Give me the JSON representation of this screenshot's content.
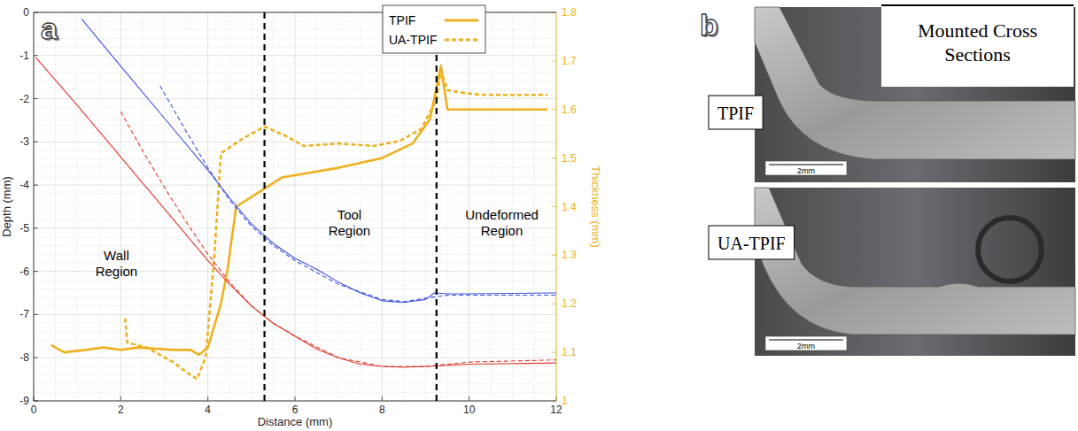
{
  "chart_data": {
    "type": "line",
    "panel_label": "a",
    "x_label": "Distance (mm)",
    "y_label": "Depth (mm)",
    "y2_label": "Thickness (mm)",
    "xlim": [
      0,
      12
    ],
    "xticks": [
      0,
      2,
      4,
      6,
      8,
      10,
      12
    ],
    "ylim": [
      -9,
      0
    ],
    "yticks": [
      -9,
      -8,
      -7,
      -6,
      -5,
      -4,
      -3,
      -2,
      -1,
      0
    ],
    "y2lim": [
      1,
      1.8
    ],
    "y2ticks": [
      1,
      1.1,
      1.2,
      1.3,
      1.4,
      1.5,
      1.6,
      1.7,
      1.8
    ],
    "grid": true,
    "legend": "top",
    "vlines": [
      5.3,
      9.25
    ],
    "regions": [
      "Wall Region",
      "Tool Region",
      "Undeformed Region"
    ],
    "series": [
      {
        "name": "TPIF",
        "color": "#edb120",
        "axis": "y2",
        "line_style": "solid",
        "x": [
          0.4,
          0.7,
          1.2,
          1.6,
          2.0,
          2.4,
          3.2,
          3.6,
          3.8,
          4.0,
          4.3,
          4.45,
          4.65,
          5.0,
          5.7,
          7.0,
          8.0,
          8.7,
          9.1,
          9.35,
          9.5,
          10.0,
          11.8
        ],
        "values": [
          1.115,
          1.1,
          1.105,
          1.11,
          1.105,
          1.11,
          1.105,
          1.105,
          1.095,
          1.11,
          1.2,
          1.27,
          1.4,
          1.42,
          1.46,
          1.48,
          1.5,
          1.53,
          1.58,
          1.69,
          1.6,
          1.6,
          1.6
        ]
      },
      {
        "name": "UA-TPIF",
        "color": "#edb120",
        "axis": "y2",
        "line_style": "dashed",
        "x": [
          2.1,
          2.15,
          2.6,
          3.2,
          3.5,
          3.75,
          3.95,
          4.15,
          4.3,
          4.8,
          5.3,
          5.8,
          6.2,
          7.0,
          7.8,
          8.4,
          8.9,
          9.25,
          9.35,
          9.5,
          9.8,
          10.3,
          11.8
        ],
        "values": [
          1.17,
          1.12,
          1.11,
          1.08,
          1.06,
          1.045,
          1.09,
          1.3,
          1.51,
          1.54,
          1.565,
          1.545,
          1.525,
          1.53,
          1.525,
          1.535,
          1.56,
          1.62,
          1.68,
          1.64,
          1.635,
          1.63,
          1.63
        ]
      },
      {
        "color": "#3c4fe0",
        "line_style": "solid",
        "x": [
          1.1,
          2,
          3,
          4,
          4.5,
          5,
          5.5,
          6,
          6.5,
          7,
          7.5,
          8,
          8.5,
          9,
          9.2,
          9.5,
          10,
          12
        ],
        "values": [
          -0.15,
          -1.25,
          -2.45,
          -3.65,
          -4.3,
          -4.9,
          -5.35,
          -5.7,
          -5.95,
          -6.25,
          -6.5,
          -6.68,
          -6.72,
          -6.65,
          -6.5,
          -6.52,
          -6.52,
          -6.5
        ]
      },
      {
        "color": "#3c4fe0",
        "line_style": "dashed",
        "x": [
          2.9,
          3.5,
          4,
          4.5,
          5,
          5.5,
          6,
          7,
          8,
          8.5,
          9,
          9.5,
          10,
          12
        ],
        "values": [
          -1.7,
          -2.75,
          -3.6,
          -4.35,
          -4.95,
          -5.4,
          -5.75,
          -6.3,
          -6.65,
          -6.7,
          -6.62,
          -6.55,
          -6.55,
          -6.55
        ]
      },
      {
        "color": "#e0352b",
        "line_style": "solid",
        "x": [
          0.05,
          1,
          2,
          3,
          4,
          4.5,
          5,
          5.5,
          6,
          6.5,
          7,
          7.5,
          8,
          8.5,
          9,
          10,
          12
        ],
        "values": [
          -1.05,
          -2.15,
          -3.35,
          -4.55,
          -5.75,
          -6.3,
          -6.8,
          -7.2,
          -7.5,
          -7.8,
          -8.0,
          -8.15,
          -8.2,
          -8.22,
          -8.2,
          -8.15,
          -8.12
        ]
      },
      {
        "color": "#e0352b",
        "line_style": "dashed",
        "x": [
          2,
          2.5,
          3,
          3.5,
          4,
          4.5,
          5,
          5.5,
          6,
          7,
          8,
          9,
          10,
          12
        ],
        "values": [
          -2.3,
          -3.2,
          -4.05,
          -4.85,
          -5.6,
          -6.25,
          -6.8,
          -7.2,
          -7.5,
          -8.0,
          -8.2,
          -8.2,
          -8.1,
          -8.05
        ]
      }
    ]
  },
  "panel_b": {
    "panel_label": "b",
    "title": "Mounted Cross Sections",
    "images": [
      {
        "label": "TPIF",
        "scale_bar": "2mm"
      },
      {
        "label": "UA-TPIF",
        "scale_bar": "2mm"
      }
    ]
  }
}
